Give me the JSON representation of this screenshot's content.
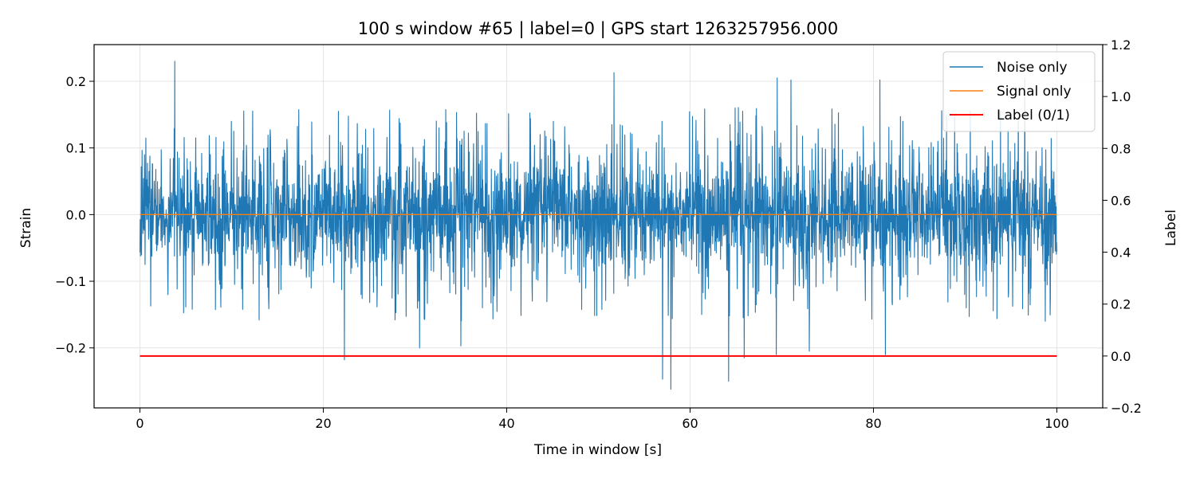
{
  "chart_data": {
    "type": "line",
    "title": "100 s window #65 | label=0 | GPS start 1263257956.000",
    "xlabel": "Time in window [s]",
    "ylabel": "Strain",
    "y2label": "Label",
    "xlim": [
      -5,
      105
    ],
    "ylim": [
      -0.29,
      0.255
    ],
    "y2lim": [
      -0.2,
      1.2
    ],
    "xticks": [
      0,
      20,
      40,
      60,
      80,
      100
    ],
    "xtick_labels": [
      "0",
      "20",
      "40",
      "60",
      "80",
      "100"
    ],
    "yticks": [
      -0.2,
      -0.1,
      0.0,
      0.1,
      0.2
    ],
    "ytick_labels": [
      "−0.2",
      "−0.1",
      "0.0",
      "0.1",
      "0.2"
    ],
    "y2ticks": [
      -0.2,
      0.0,
      0.2,
      0.4,
      0.6,
      0.8,
      1.0,
      1.2
    ],
    "y2tick_labels": [
      "−0.2",
      "0.0",
      "0.2",
      "0.4",
      "0.6",
      "0.8",
      "1.0",
      "1.2"
    ],
    "grid": true,
    "legend_position": "top-right",
    "series": [
      {
        "name": "Noise only",
        "axis": "left",
        "color": "#1f77b4",
        "style": "noise",
        "x_range": [
          0,
          100
        ],
        "typical_envelope": [
          -0.1,
          0.12
        ],
        "extremes": [
          {
            "x": 3.8,
            "y": 0.23
          },
          {
            "x": 51.7,
            "y": 0.213
          },
          {
            "x": 69.5,
            "y": 0.205
          },
          {
            "x": 71.0,
            "y": 0.202
          },
          {
            "x": 80.7,
            "y": 0.202
          },
          {
            "x": 96.5,
            "y": 0.205
          },
          {
            "x": 22.3,
            "y": -0.218
          },
          {
            "x": 57.0,
            "y": -0.247
          },
          {
            "x": 57.9,
            "y": -0.262
          },
          {
            "x": 64.2,
            "y": -0.25
          },
          {
            "x": 65.9,
            "y": -0.215
          },
          {
            "x": 81.3,
            "y": -0.21
          },
          {
            "x": 69.4,
            "y": -0.21
          },
          {
            "x": 30.5,
            "y": -0.2
          },
          {
            "x": 35.0,
            "y": -0.197
          },
          {
            "x": 73.0,
            "y": -0.205
          }
        ]
      },
      {
        "name": "Signal only",
        "axis": "left",
        "color": "#ff7f0e",
        "x": [
          0,
          100
        ],
        "y": [
          0.0,
          0.0
        ]
      },
      {
        "name": "Label (0/1)",
        "axis": "right",
        "color": "#ff0000",
        "x": [
          0,
          100
        ],
        "y": [
          0,
          0
        ]
      }
    ]
  }
}
